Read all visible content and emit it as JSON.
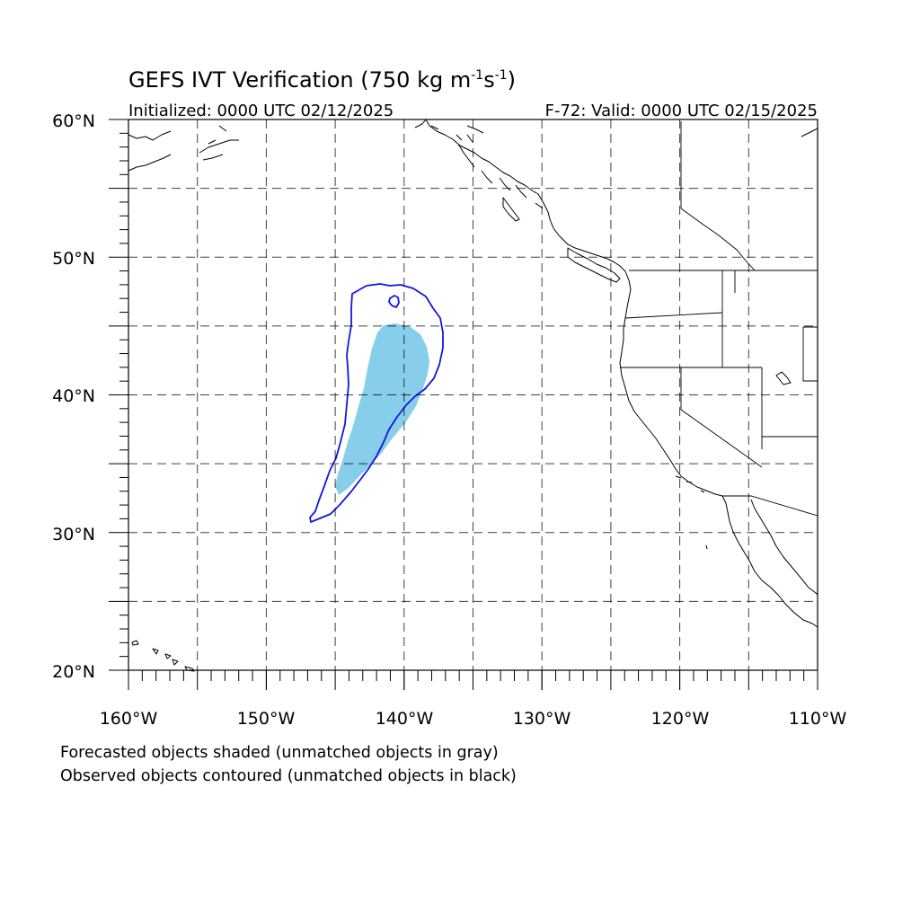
{
  "title": {
    "main": "GEFS IVT Verification (750 kg m",
    "sup1": "-1",
    "mid": "s",
    "sup2": "-1",
    "end": ")"
  },
  "initialized": "Initialized: 0000 UTC 02/12/2025",
  "valid": "F-72: Valid: 0000 UTC 02/15/2025",
  "lat_labels": [
    "60°N",
    "50°N",
    "40°N",
    "30°N",
    "20°N"
  ],
  "lon_labels": [
    "160°W",
    "150°W",
    "140°W",
    "130°W",
    "120°W",
    "110°W"
  ],
  "footnote": {
    "line1": "Forecasted objects shaded (unmatched objects in gray)",
    "line2": "Observed objects contoured (unmatched objects in black)"
  },
  "colors": {
    "forecast_fill": "#87ceea",
    "observed_contour": "#1515e0"
  },
  "map_extent": {
    "lon": [
      -160,
      -110
    ],
    "lat": [
      20,
      60
    ],
    "projection": "cylindrical equidistant"
  },
  "objects": {
    "forecast_shaded": "matched forecast IVT object",
    "observed_contoured": "matched observed IVT object"
  }
}
